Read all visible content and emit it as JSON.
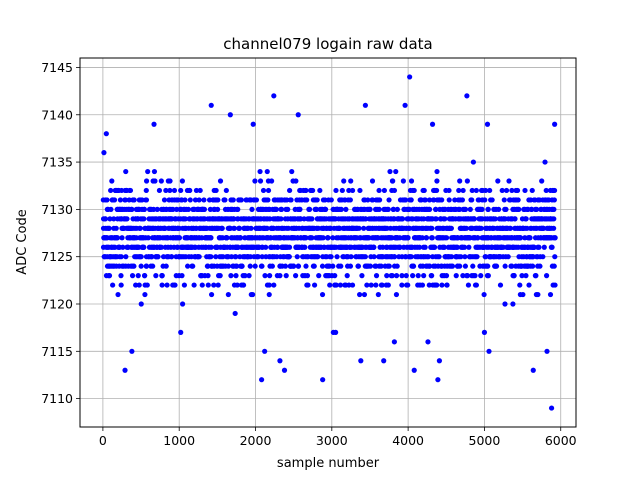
{
  "chart_data": {
    "type": "scatter",
    "title": "channel079 logain raw data",
    "xlabel": "sample number",
    "ylabel": "ADC Code",
    "xlim": [
      -300,
      6200
    ],
    "ylim": [
      7107,
      7146
    ],
    "xticks": [
      0,
      1000,
      2000,
      3000,
      4000,
      5000,
      6000
    ],
    "yticks": [
      7110,
      7115,
      7120,
      7125,
      7130,
      7135,
      7140,
      7145
    ],
    "grid": true,
    "marker_color": "#0000ff",
    "x_range": [
      0,
      5920
    ],
    "typical_range": [
      7117,
      7141
    ],
    "dense_core_range": [
      7122,
      7133
    ],
    "series": [
      {
        "outlier_points": [
          [
            45,
            7138
          ],
          [
            290,
            7113
          ],
          [
            380,
            7115
          ],
          [
            670,
            7139
          ],
          [
            1020,
            7117
          ],
          [
            1420,
            7141
          ],
          [
            1670,
            7140
          ],
          [
            1970,
            7139
          ],
          [
            2080,
            7112
          ],
          [
            2120,
            7115
          ],
          [
            2240,
            7142
          ],
          [
            2320,
            7114
          ],
          [
            2380,
            7113
          ],
          [
            2560,
            7140
          ],
          [
            2880,
            7112
          ],
          [
            3020,
            7117
          ],
          [
            3050,
            7117
          ],
          [
            3380,
            7114
          ],
          [
            3440,
            7141
          ],
          [
            3680,
            7114
          ],
          [
            3820,
            7116
          ],
          [
            3960,
            7141
          ],
          [
            4020,
            7144
          ],
          [
            4080,
            7113
          ],
          [
            4260,
            7116
          ],
          [
            4320,
            7139
          ],
          [
            4390,
            7112
          ],
          [
            4410,
            7114
          ],
          [
            4770,
            7142
          ],
          [
            5000,
            7117
          ],
          [
            5040,
            7139
          ],
          [
            5060,
            7115
          ],
          [
            5640,
            7113
          ],
          [
            5820,
            7115
          ],
          [
            5880,
            7109
          ],
          [
            5920,
            7139
          ]
        ]
      }
    ]
  }
}
